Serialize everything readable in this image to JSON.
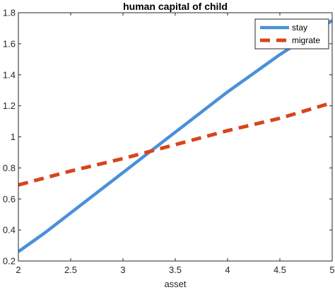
{
  "chart_data": {
    "type": "line",
    "title": "human capital of child",
    "xlabel": "asset",
    "ylabel": "",
    "xlim": [
      2,
      5
    ],
    "ylim": [
      0.2,
      1.8
    ],
    "xticks": [
      2,
      2.5,
      3,
      3.5,
      4,
      4.5,
      5
    ],
    "xtick_labels": [
      "2",
      "2.5",
      "3",
      "3.5",
      "4",
      "4.5",
      "5"
    ],
    "yticks": [
      0.2,
      0.4,
      0.6,
      0.8,
      1,
      1.2,
      1.4,
      1.6,
      1.8
    ],
    "ytick_labels": [
      "0.2",
      "0.4",
      "0.6",
      "0.8",
      "1",
      "1.2",
      "1.4",
      "1.6",
      "1.8"
    ],
    "grid": false,
    "legend_position": "top-right",
    "series": [
      {
        "name": "stay",
        "color": "#4a90d9",
        "style": "solid",
        "x": [
          2,
          2.25,
          2.5,
          2.75,
          3,
          3.25,
          3.5,
          3.75,
          4,
          4.25,
          4.5,
          4.75,
          5
        ],
        "y": [
          0.26,
          0.38,
          0.51,
          0.64,
          0.77,
          0.9,
          1.03,
          1.16,
          1.29,
          1.41,
          1.53,
          1.64,
          1.75
        ]
      },
      {
        "name": "migrate",
        "color": "#d9441c",
        "style": "dashed",
        "x": [
          2,
          2.5,
          3,
          3.5,
          4,
          4.5,
          5
        ],
        "y": [
          0.69,
          0.78,
          0.86,
          0.95,
          1.04,
          1.12,
          1.22
        ]
      }
    ]
  }
}
